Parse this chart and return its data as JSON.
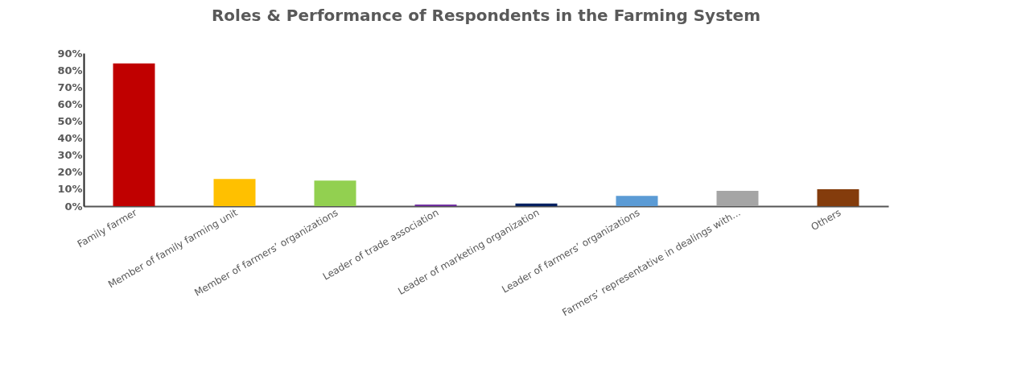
{
  "chart_data": {
    "type": "bar",
    "title": "Roles & Performance of Respondents in the Farming System",
    "categories": [
      "Family farmer",
      "Member of family farming unit",
      "Member of farmers’ organizations",
      "Leader of trade association",
      "Leader of marketing organization",
      "Leader of farmers’ organizations",
      "Farmers’ representative in dealings with...",
      "Others"
    ],
    "values": [
      84,
      16,
      15,
      1,
      1.5,
      6,
      9,
      10
    ],
    "colors": [
      "#c00000",
      "#ffc000",
      "#92d050",
      "#7030a0",
      "#002060",
      "#5b9bd5",
      "#a5a5a5",
      "#843c0c"
    ],
    "ylim": [
      0,
      90
    ],
    "yticks": [
      {
        "value": 0,
        "label": "0%"
      },
      {
        "value": 10,
        "label": "10%"
      },
      {
        "value": 20,
        "label": "20%"
      },
      {
        "value": 30,
        "label": "30%"
      },
      {
        "value": 40,
        "label": "40%"
      },
      {
        "value": 50,
        "label": "50%"
      },
      {
        "value": 60,
        "label": "60%"
      },
      {
        "value": 70,
        "label": "70%"
      },
      {
        "value": 80,
        "label": "80%"
      },
      {
        "value": 90,
        "label": "90%"
      }
    ],
    "grid": false,
    "legend": false
  }
}
